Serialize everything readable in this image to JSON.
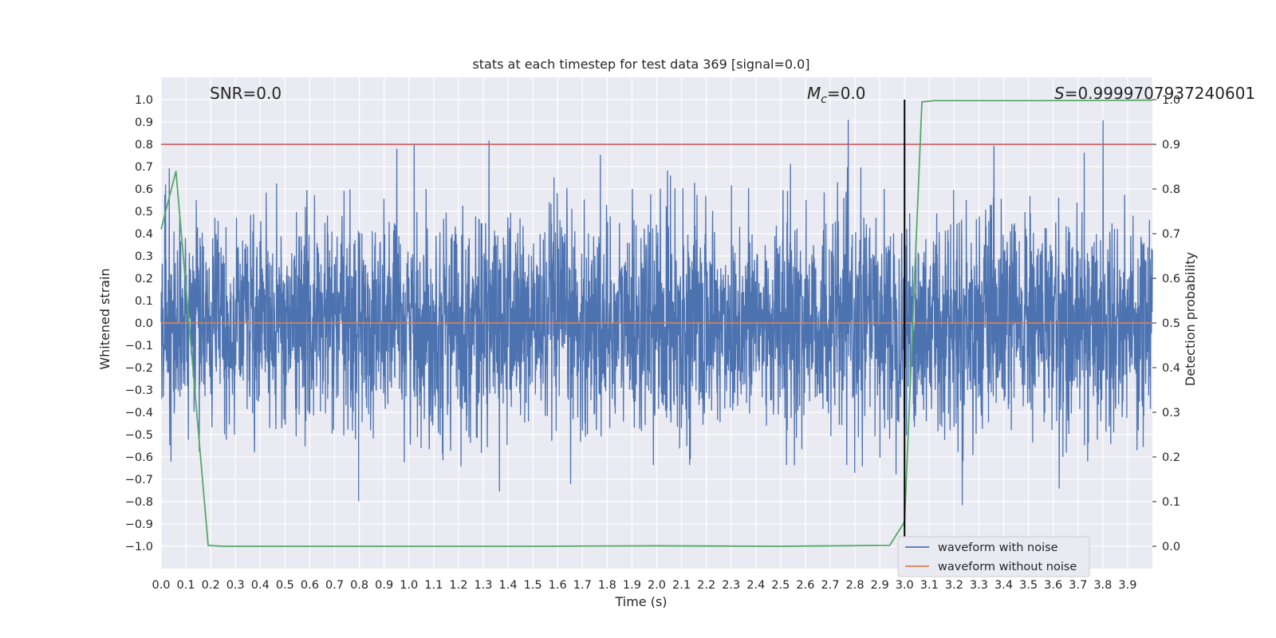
{
  "chart_data": {
    "type": "line",
    "title": "stats at each timestep for test data 369 [signal=0.0]",
    "xlabel": "Time (s)",
    "ylabel": "Whitened strain",
    "y2label": "Detection probability",
    "xlim": [
      0.0,
      4.0
    ],
    "ylim": [
      -1.1,
      1.1
    ],
    "y2lim": [
      -0.05,
      1.05
    ],
    "xticks": [
      "0.0",
      "0.1",
      "0.2",
      "0.3",
      "0.4",
      "0.5",
      "0.6",
      "0.7",
      "0.8",
      "0.9",
      "1.0",
      "1.1",
      "1.2",
      "1.3",
      "1.4",
      "1.5",
      "1.6",
      "1.7",
      "1.8",
      "1.9",
      "2.0",
      "2.1",
      "2.2",
      "2.3",
      "2.4",
      "2.5",
      "2.6",
      "2.7",
      "2.8",
      "2.9",
      "3.0",
      "3.1",
      "3.2",
      "3.3",
      "3.4",
      "3.5",
      "3.6",
      "3.7",
      "3.8",
      "3.9"
    ],
    "yticks": [
      "1.0",
      "0.9",
      "0.8",
      "0.7",
      "0.6",
      "0.5",
      "0.4",
      "0.3",
      "0.2",
      "0.1",
      "0.0",
      "−0.1",
      "−0.2",
      "−0.3",
      "−0.4",
      "−0.5",
      "−0.6",
      "−0.7",
      "−0.8",
      "−0.9",
      "−1.0"
    ],
    "y2ticks": [
      "0.0",
      "0.1",
      "0.2",
      "0.3",
      "0.4",
      "0.5",
      "0.6",
      "0.7",
      "0.8",
      "0.9",
      "1.0"
    ],
    "grid": true,
    "legend_position": "bottom-right",
    "annotations": {
      "snr": "SNR=0.0",
      "mc_symbol": "M",
      "mc_sub": "c",
      "mc_value": "=0.0",
      "s_symbol": "S",
      "s_value": "=0.9999707937240601"
    },
    "noise": {
      "std": 0.24,
      "peak_max": 0.91,
      "peak_min": -0.99,
      "samples": 4000
    },
    "series": [
      {
        "name": "waveform with noise",
        "color": "#4c72b0",
        "axis": "left",
        "kind": "noise"
      },
      {
        "name": "waveform without noise",
        "color": "#dd8452",
        "axis": "left",
        "x": [
          0.0,
          4.0
        ],
        "y": [
          0.0,
          0.0
        ]
      },
      {
        "color": "#55a868",
        "axis": "right",
        "x": [
          0.0,
          0.06,
          0.19,
          0.25,
          1.0,
          1.5,
          2.0,
          2.5,
          2.94,
          3.0,
          3.07,
          3.12,
          3.5,
          4.0
        ],
        "y": [
          0.71,
          0.84,
          0.002,
          0.0,
          0.0,
          0.0,
          0.001,
          0.0,
          0.002,
          0.055,
          0.995,
          0.998,
          0.998,
          0.999
        ]
      }
    ],
    "threshold_line": {
      "y": 0.9,
      "axis": "right",
      "color": "#c44e52"
    },
    "vertical_line": {
      "x": 3.0,
      "y_range": [
        -1.0,
        1.0
      ],
      "color": "#000000"
    }
  }
}
